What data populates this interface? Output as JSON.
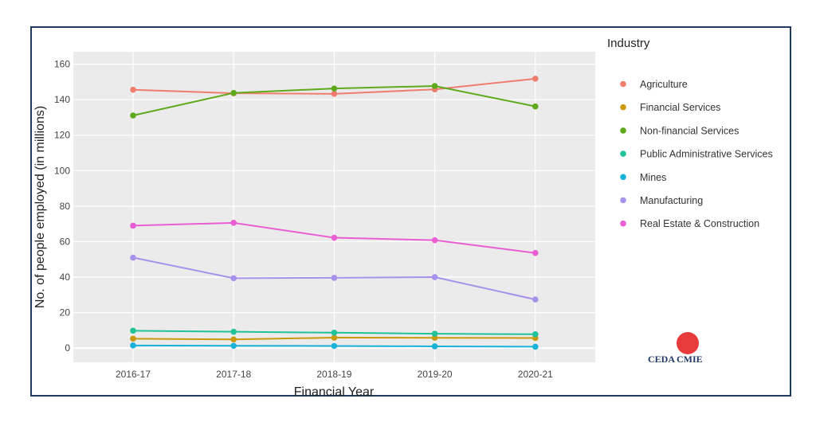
{
  "chart_data": {
    "type": "line",
    "title": "",
    "xlabel": "Financial Year",
    "ylabel": "No. of people employed (in millions)",
    "ylim": [
      -8,
      167
    ],
    "y_ticks": [
      0,
      20,
      40,
      60,
      80,
      100,
      120,
      140,
      160
    ],
    "categories": [
      "2016-17",
      "2017-18",
      "2018-19",
      "2019-20",
      "2020-21"
    ],
    "grid": true,
    "legend": {
      "title": "Industry",
      "position": "right"
    },
    "series": [
      {
        "name": "Agriculture",
        "color": "#ef7e6f",
        "values": [
          145.6,
          143.6,
          143.3,
          145.8,
          151.8
        ]
      },
      {
        "name": "Financial Services",
        "color": "#c99a0e",
        "values": [
          5.3,
          4.9,
          5.9,
          5.8,
          5.7
        ]
      },
      {
        "name": "Non-financial Services",
        "color": "#5ea91c",
        "values": [
          131.1,
          143.8,
          146.3,
          147.7,
          136.2
        ]
      },
      {
        "name": "Public Administrative Services",
        "color": "#21c29a",
        "values": [
          9.8,
          9.2,
          8.7,
          8.1,
          7.8
        ]
      },
      {
        "name": "Mines",
        "color": "#1ab3d8",
        "values": [
          1.5,
          1.3,
          1.2,
          1.0,
          0.8
        ]
      },
      {
        "name": "Manufacturing",
        "color": "#a692ea",
        "values": [
          51.0,
          39.4,
          39.6,
          40.0,
          27.4
        ]
      },
      {
        "name": "Real Estate & Construction",
        "color": "#ea5ed3",
        "values": [
          69.0,
          70.6,
          62.2,
          60.8,
          53.6
        ]
      }
    ]
  },
  "logo": {
    "left_text": "CEDA",
    "right_text": "CMIE",
    "circle_color": "#e83b3b",
    "text_color": "#223a66"
  }
}
